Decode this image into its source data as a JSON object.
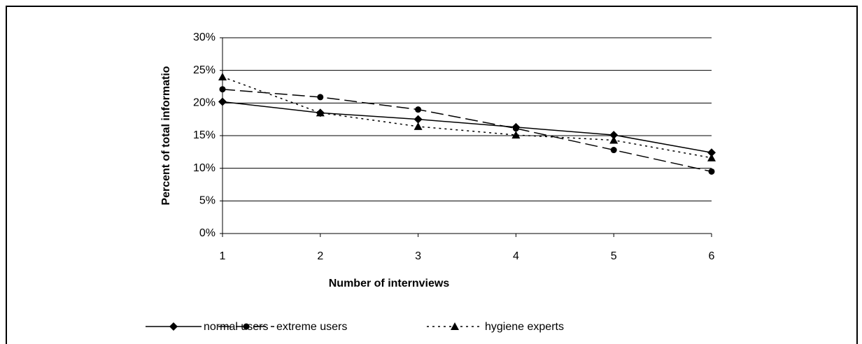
{
  "chart_data": {
    "type": "line",
    "x_label": "Number of internviews",
    "y_label": "Percent of total informatio",
    "x": [
      1,
      2,
      3,
      4,
      5,
      6
    ],
    "xlim": [
      1,
      6
    ],
    "xticks": [
      1,
      2,
      3,
      4,
      5,
      6
    ],
    "ylim": [
      0,
      30
    ],
    "yticks": [
      {
        "value": 0,
        "label": "0%"
      },
      {
        "value": 5,
        "label": "5%"
      },
      {
        "value": 10,
        "label": "10%"
      },
      {
        "value": 15,
        "label": "15%"
      },
      {
        "value": 20,
        "label": "20%"
      },
      {
        "value": 25,
        "label": "25%"
      },
      {
        "value": 30,
        "label": "30%"
      }
    ],
    "grid": true,
    "legend": "bottom",
    "series": [
      {
        "name": "normal users",
        "color": "#000000",
        "dash": "solid",
        "marker": "diamond",
        "values": [
          20.2,
          18.5,
          17.5,
          16.3,
          15.1,
          12.4
        ]
      },
      {
        "name": "extreme users",
        "color": "#000000",
        "dash": "dashed",
        "marker": "circle",
        "values": [
          22.1,
          20.9,
          19.0,
          16.1,
          12.8,
          9.5
        ]
      },
      {
        "name": "hygiene experts",
        "color": "#000000",
        "dash": "dotted",
        "marker": "triangle",
        "values": [
          24.0,
          18.5,
          16.4,
          15.1,
          14.3,
          11.6
        ]
      }
    ]
  }
}
